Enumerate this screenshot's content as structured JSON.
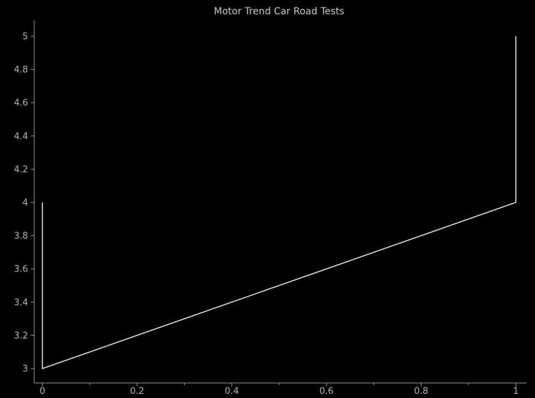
{
  "chart_data": {
    "type": "line",
    "title": "Motor Trend Car Road Tests",
    "xlabel": "",
    "ylabel": "",
    "xlim": [
      0,
      1
    ],
    "ylim": [
      3,
      5
    ],
    "xticks": [
      0,
      0.2,
      0.4,
      0.6,
      0.8,
      1
    ],
    "xtick_labels": [
      "0",
      "0.2",
      "0.4",
      "0.6",
      "0.8",
      "1"
    ],
    "yticks": [
      3,
      3.2,
      3.4,
      3.6,
      3.8,
      4,
      4.2,
      4.4,
      4.6,
      4.8,
      5
    ],
    "ytick_labels": [
      "3",
      "3.2",
      "3.4",
      "3.6",
      "3.8",
      "4",
      "4.2",
      "4.4",
      "4.6",
      "4.8",
      "5"
    ],
    "grid": false,
    "colors": {
      "background": "#000000",
      "line": "#e6e6e6",
      "axis": "#9a9a9a",
      "text": "#b4b4b4"
    },
    "series": [
      {
        "points": [
          {
            "x": 0,
            "y": 4
          },
          {
            "x": 0,
            "y": 3
          },
          {
            "x": 1,
            "y": 4
          },
          {
            "x": 1,
            "y": 5
          }
        ]
      }
    ]
  }
}
